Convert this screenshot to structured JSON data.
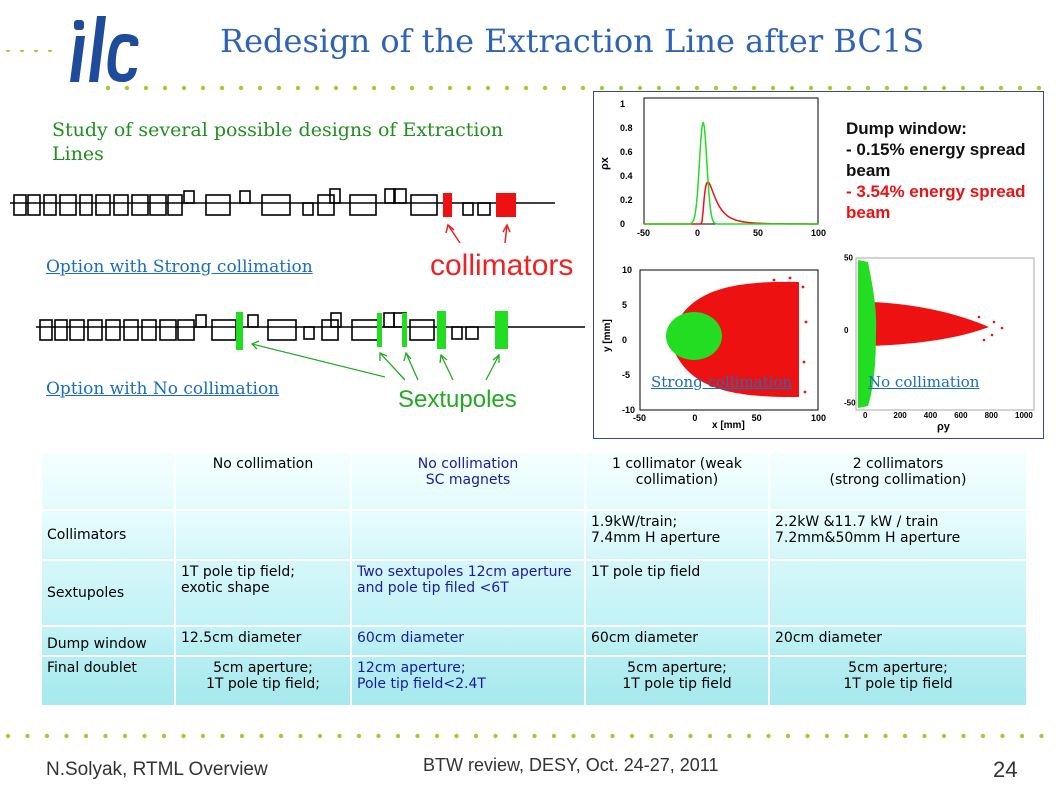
{
  "header": {
    "logo_text": "ilc",
    "title": "Redesign of the Extraction Line after BC1S"
  },
  "intro": {
    "text": "Study of several  possible designs of Extraction Lines"
  },
  "lattice": {
    "collimators_label": "collimators",
    "sextupoles_label": "Sextupoles",
    "option_strong": "Option with Strong collimation",
    "option_none": "Option with No collimation"
  },
  "plots": {
    "dump_window_title": "Dump window:",
    "dump_line1": "-  0.15% energy spread beam",
    "dump_line2": "-   3.54% energy spread beam",
    "top_plot": {
      "ylabel": "ρx",
      "xticks": [
        "-50",
        "0",
        "50",
        "100"
      ],
      "yticks": [
        "0",
        "0.2",
        "0.4",
        "0.6",
        "0.8",
        "1"
      ]
    },
    "left_plot": {
      "ylabel": "y [mm]",
      "xlabel": "x [mm]",
      "xticks": [
        "-50",
        "0",
        "50",
        "100"
      ],
      "yticks": [
        "-10",
        "-5",
        "0",
        "5",
        "10"
      ]
    },
    "right_plot": {
      "xlabel": "ρy",
      "xticks": [
        "0",
        "200",
        "400",
        "600",
        "800",
        "1000"
      ],
      "yticks": [
        "-50",
        "0",
        "50"
      ]
    },
    "link_strong": "Strong collimation",
    "link_none": "No collimation",
    "colors": {
      "narrow": "#22dd22",
      "wide": "#ee1111"
    }
  },
  "table": {
    "headers": [
      "",
      "No collimation",
      "No collimation\nSC magnets",
      "1 collimator  (weak collimation)",
      "2 collimators\n(strong collimation)"
    ],
    "rows": [
      {
        "label": "Collimators",
        "cells": [
          "",
          "",
          "1.9kW/train;\n7.4mm H aperture",
          "2.2kW &11.7 kW / train\n7.2mm&50mm H aperture"
        ]
      },
      {
        "label": "Sextupoles",
        "cells": [
          "1T pole tip field;\nexotic shape",
          "Two sextupoles 12cm aperture  and pole tip filed <6T",
          "1T pole tip field",
          ""
        ]
      },
      {
        "label": "Dump window",
        "cells": [
          "12.5cm diameter",
          "60cm diameter",
          "60cm diameter",
          "20cm diameter"
        ]
      },
      {
        "label": "Final doublet",
        "cells": [
          "5cm aperture;\n1T pole tip field;",
          "12cm aperture;\nPole tip field<2.4T",
          "5cm aperture;\n1T pole tip field",
          "5cm aperture;\n1T pole tip field"
        ]
      }
    ]
  },
  "footer": {
    "author": "N.Solyak, RTML Overview",
    "event": "BTW review, DESY, Oct. 24-27, 2011",
    "page": "24"
  }
}
